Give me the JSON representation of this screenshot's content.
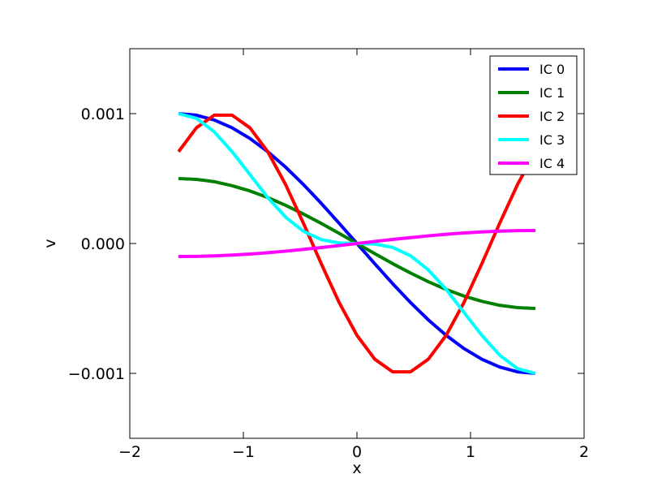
{
  "chart_data": {
    "type": "line",
    "title": "",
    "xlabel": "x",
    "ylabel": "v",
    "xlim": [
      -2,
      2
    ],
    "ylim": [
      -0.0015,
      0.0015
    ],
    "x_ticks": [
      {
        "value": -2,
        "label": "−2"
      },
      {
        "value": -1,
        "label": "−1"
      },
      {
        "value": 0,
        "label": "0"
      },
      {
        "value": 1,
        "label": "1"
      },
      {
        "value": 2,
        "label": "2"
      }
    ],
    "y_ticks": [
      {
        "value": -0.001,
        "label": "−0.001"
      },
      {
        "value": 0,
        "label": "0.000"
      },
      {
        "value": 0.001,
        "label": "0.001"
      }
    ],
    "grid": false,
    "legend_position": "top-right",
    "x": [
      -1.5708,
      -1.4137,
      -1.2566,
      -1.0996,
      -0.9425,
      -0.7854,
      -0.6283,
      -0.4712,
      -0.3142,
      -0.1571,
      0,
      0.1571,
      0.3142,
      0.4712,
      0.6283,
      0.7854,
      0.9425,
      1.0996,
      1.2566,
      1.4137,
      1.5708
    ],
    "series": [
      {
        "name": "IC 0",
        "color": "#0000ff",
        "values": [
          0.001,
          0.000988,
          0.000951,
          0.000891,
          0.000809,
          0.000707,
          0.000588,
          0.000454,
          0.000309,
          0.000156,
          0,
          -0.000156,
          -0.000309,
          -0.000454,
          -0.000588,
          -0.000707,
          -0.000809,
          -0.000891,
          -0.000951,
          -0.000988,
          -0.001
        ]
      },
      {
        "name": "IC 1",
        "color": "#008000",
        "values": [
          0.0005,
          0.000494,
          0.000476,
          0.000445,
          0.000405,
          0.000354,
          0.000294,
          0.000227,
          0.000155,
          7.8e-05,
          0,
          -7.8e-05,
          -0.000155,
          -0.000227,
          -0.000294,
          -0.000354,
          -0.000405,
          -0.000445,
          -0.000476,
          -0.000494,
          -0.0005
        ]
      },
      {
        "name": "IC 2",
        "color": "#ff0000",
        "values": [
          0.000707,
          0.000891,
          0.000988,
          0.000988,
          0.000891,
          0.000707,
          0.000454,
          0.000156,
          -0.000156,
          -0.000454,
          -0.000707,
          -0.000891,
          -0.000988,
          -0.000988,
          -0.000891,
          -0.000707,
          -0.000454,
          -0.000156,
          0.000156,
          0.000454,
          0.000707
        ]
      },
      {
        "name": "IC 3",
        "color": "#00ffff",
        "values": [
          0.001,
          0.000964,
          0.00086,
          0.000707,
          0.000531,
          0.000354,
          0.000203,
          9.4e-05,
          3e-05,
          4e-06,
          0,
          -4e-06,
          -3e-05,
          -9.4e-05,
          -0.000203,
          -0.000354,
          -0.000531,
          -0.000707,
          -0.00086,
          -0.000964,
          -0.001
        ]
      },
      {
        "name": "IC 4",
        "color": "#ff00ff",
        "values": [
          -0.0001,
          -9.9e-05,
          -9.5e-05,
          -8.9e-05,
          -8.1e-05,
          -7.1e-05,
          -5.9e-05,
          -4.5e-05,
          -3.1e-05,
          -1.6e-05,
          0,
          1.6e-05,
          3.1e-05,
          4.5e-05,
          5.9e-05,
          7.1e-05,
          8.1e-05,
          8.9e-05,
          9.5e-05,
          9.9e-05,
          0.0001
        ]
      }
    ]
  }
}
